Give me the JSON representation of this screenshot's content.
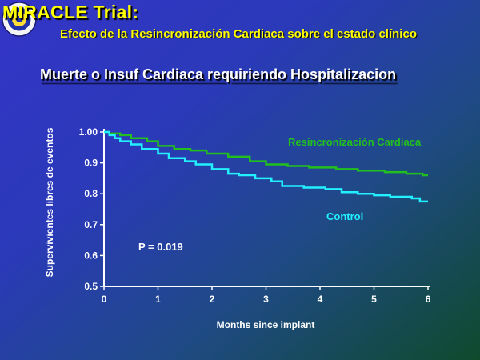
{
  "slide": {
    "title": "MIRACLE Trial:",
    "subtitle": "Efecto de la Resincronización Cardiaca sobre el estado clínico",
    "chart_heading": "Muerte o Insuf Cardiaca requiriendo Hospitalizacion",
    "logo_icon": "seal-logo-icon"
  },
  "colors": {
    "title": "#ffff00",
    "resincronizacion": "#22c01e",
    "control": "#22f0ff",
    "axis": "#ffffff"
  },
  "chart_data": {
    "type": "line",
    "title": "Muerte o Insuf Cardiaca requiriendo Hospitalizacion",
    "xlabel": "Months since implant",
    "ylabel": "Supervivientes libres de eventos",
    "xlim": [
      0,
      6
    ],
    "ylim": [
      0.5,
      1.0
    ],
    "xticks": [
      "0",
      "1",
      "2",
      "3",
      "4",
      "5",
      "6"
    ],
    "yticks": [
      "0.5",
      "0.6",
      "0.7",
      "0.8",
      "0.9",
      "1.00"
    ],
    "grid": false,
    "annotation": "P = 0.019",
    "series": [
      {
        "name": "Resincronización Cardiaca",
        "step": true,
        "x": [
          0,
          0.1,
          0.3,
          0.5,
          0.8,
          1.0,
          1.3,
          1.6,
          1.9,
          2.3,
          2.7,
          3.0,
          3.4,
          3.8,
          4.3,
          4.7,
          5.2,
          5.6,
          5.9,
          6.0
        ],
        "y": [
          1.0,
          0.995,
          0.99,
          0.98,
          0.97,
          0.955,
          0.945,
          0.94,
          0.93,
          0.92,
          0.905,
          0.895,
          0.89,
          0.885,
          0.88,
          0.875,
          0.87,
          0.865,
          0.86,
          0.86
        ]
      },
      {
        "name": "Control",
        "step": true,
        "x": [
          0,
          0.1,
          0.2,
          0.3,
          0.5,
          0.7,
          1.0,
          1.2,
          1.5,
          1.7,
          2.0,
          2.3,
          2.5,
          2.8,
          3.1,
          3.3,
          3.7,
          4.1,
          4.4,
          4.7,
          5.0,
          5.3,
          5.7,
          5.85,
          6.0
        ],
        "y": [
          1.0,
          0.99,
          0.98,
          0.97,
          0.96,
          0.945,
          0.93,
          0.915,
          0.905,
          0.895,
          0.88,
          0.865,
          0.86,
          0.85,
          0.84,
          0.825,
          0.82,
          0.815,
          0.805,
          0.8,
          0.795,
          0.79,
          0.785,
          0.775,
          0.775
        ]
      }
    ]
  }
}
